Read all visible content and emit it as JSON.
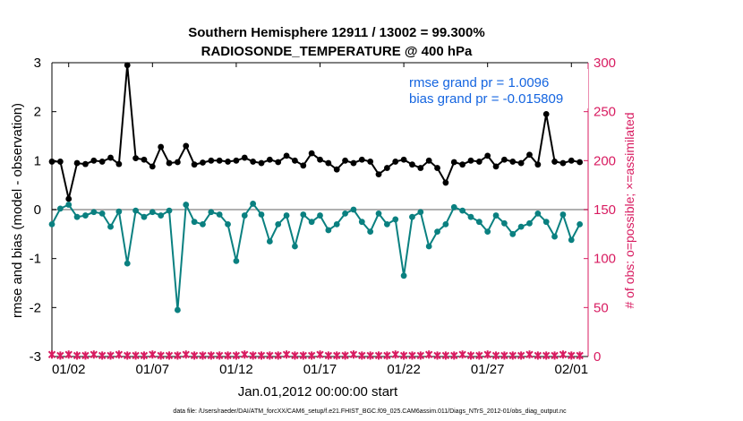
{
  "colors": {
    "rmse": "#000000",
    "bias": "#0a8080",
    "obs": "#d81b60",
    "legend_text": "#1565e0",
    "zero_line": "#b0b0b0"
  },
  "chart_data": {
    "type": "line",
    "title": "Southern Hemisphere 12911 / 13002 = 99.300%",
    "subtitle": "RADIOSONDE_TEMPERATURE @ 400 hPa",
    "xlabel": "Jan.01,2012 00:00:00 start",
    "ylabel": "rmse and bias (model - observation)",
    "ylabel_right": "# of obs: o=possible; ×=assimilated",
    "footer": "data file: /Users/raeder/DAI/ATM_forcXX/CAM6_setup/f.e21.FHIST_BGC.f09_025.CAM6assim.011/Diags_NTrS_2012-01/obs_diag_output.nc",
    "x_unit": "days since 2012-01-01 00:00 (12-hourly analyses)",
    "xlim": [
      0,
      32
    ],
    "ylim": [
      -3,
      3
    ],
    "ylim_right": [
      0,
      300
    ],
    "x_ticks": [
      1,
      6,
      11,
      16,
      21,
      26,
      31
    ],
    "x_tick_labels": [
      "01/02",
      "01/07",
      "01/12",
      "01/17",
      "01/22",
      "01/27",
      "02/01"
    ],
    "y_ticks": [
      -3,
      -2,
      -1,
      0,
      1,
      2,
      3
    ],
    "y_ticks_right": [
      0,
      50,
      100,
      150,
      200,
      250,
      300
    ],
    "legend_position": "top-right",
    "legend": [
      "rmse grand pr = 1.0096",
      "bias grand pr = -0.015809"
    ],
    "x": [
      0.0,
      0.5,
      1.0,
      1.5,
      2.0,
      2.5,
      3.0,
      3.5,
      4.0,
      4.5,
      5.0,
      5.5,
      6.0,
      6.5,
      7.0,
      7.5,
      8.0,
      8.5,
      9.0,
      9.5,
      10.0,
      10.5,
      11.0,
      11.5,
      12.0,
      12.5,
      13.0,
      13.5,
      14.0,
      14.5,
      15.0,
      15.5,
      16.0,
      16.5,
      17.0,
      17.5,
      18.0,
      18.5,
      19.0,
      19.5,
      20.0,
      20.5,
      21.0,
      21.5,
      22.0,
      22.5,
      23.0,
      23.5,
      24.0,
      24.5,
      25.0,
      25.5,
      26.0,
      26.5,
      27.0,
      27.5,
      28.0,
      28.5,
      29.0,
      29.5,
      30.0,
      30.5,
      31.0,
      31.5
    ],
    "series": [
      {
        "name": "rmse grand pr = 1.0096",
        "axis": "left",
        "values": [
          0.98,
          0.98,
          0.22,
          0.95,
          0.93,
          1.0,
          0.98,
          1.06,
          0.93,
          2.95,
          1.05,
          1.02,
          0.88,
          1.28,
          0.95,
          0.97,
          1.3,
          0.92,
          0.96,
          1.0,
          1.0,
          0.98,
          1.0,
          1.06,
          0.98,
          0.95,
          1.02,
          0.97,
          1.1,
          1.0,
          0.9,
          1.15,
          1.02,
          0.95,
          0.82,
          1.0,
          0.95,
          1.02,
          0.98,
          0.72,
          0.85,
          0.98,
          1.02,
          0.92,
          0.85,
          1.0,
          0.85,
          0.55,
          0.97,
          0.92,
          1.0,
          0.98,
          1.1,
          0.88,
          1.02,
          0.98,
          0.95,
          1.12,
          0.92,
          1.95,
          0.98,
          0.95,
          1.0,
          0.97
        ],
        "display": "markers-line"
      },
      {
        "name": "bias grand pr = -0.015809",
        "axis": "left",
        "values": [
          -0.3,
          0.02,
          0.1,
          -0.15,
          -0.12,
          -0.05,
          -0.08,
          -0.35,
          -0.04,
          -1.1,
          -0.02,
          -0.15,
          -0.05,
          -0.12,
          -0.02,
          -2.05,
          0.1,
          -0.25,
          -0.3,
          -0.05,
          -0.1,
          -0.3,
          -1.05,
          -0.12,
          0.12,
          -0.1,
          -0.65,
          -0.3,
          -0.12,
          -0.75,
          -0.1,
          -0.25,
          -0.12,
          -0.42,
          -0.3,
          -0.08,
          0.0,
          -0.25,
          -0.45,
          -0.08,
          -0.3,
          -0.2,
          -1.35,
          -0.15,
          -0.05,
          -0.75,
          -0.45,
          -0.3,
          0.05,
          -0.02,
          -0.15,
          -0.25,
          -0.45,
          -0.12,
          -0.28,
          -0.5,
          -0.35,
          -0.28,
          -0.08,
          -0.25,
          -0.55,
          -0.1,
          -0.62,
          -0.3
        ],
        "display": "markers-line"
      },
      {
        "name": "obs possible",
        "axis": "right",
        "values": [
          2,
          1,
          2,
          1,
          1,
          2,
          1,
          1,
          2,
          1,
          1,
          1,
          2,
          1,
          1,
          1,
          2,
          1,
          1,
          1,
          1,
          1,
          1,
          2,
          1,
          1,
          1,
          1,
          2,
          1,
          1,
          1,
          2,
          1,
          1,
          1,
          2,
          1,
          1,
          1,
          1,
          2,
          1,
          1,
          1,
          2,
          1,
          1,
          1,
          2,
          1,
          1,
          2,
          1,
          1,
          1,
          1,
          2,
          1,
          1,
          1,
          2,
          1,
          1
        ],
        "display": "markers"
      }
    ]
  }
}
